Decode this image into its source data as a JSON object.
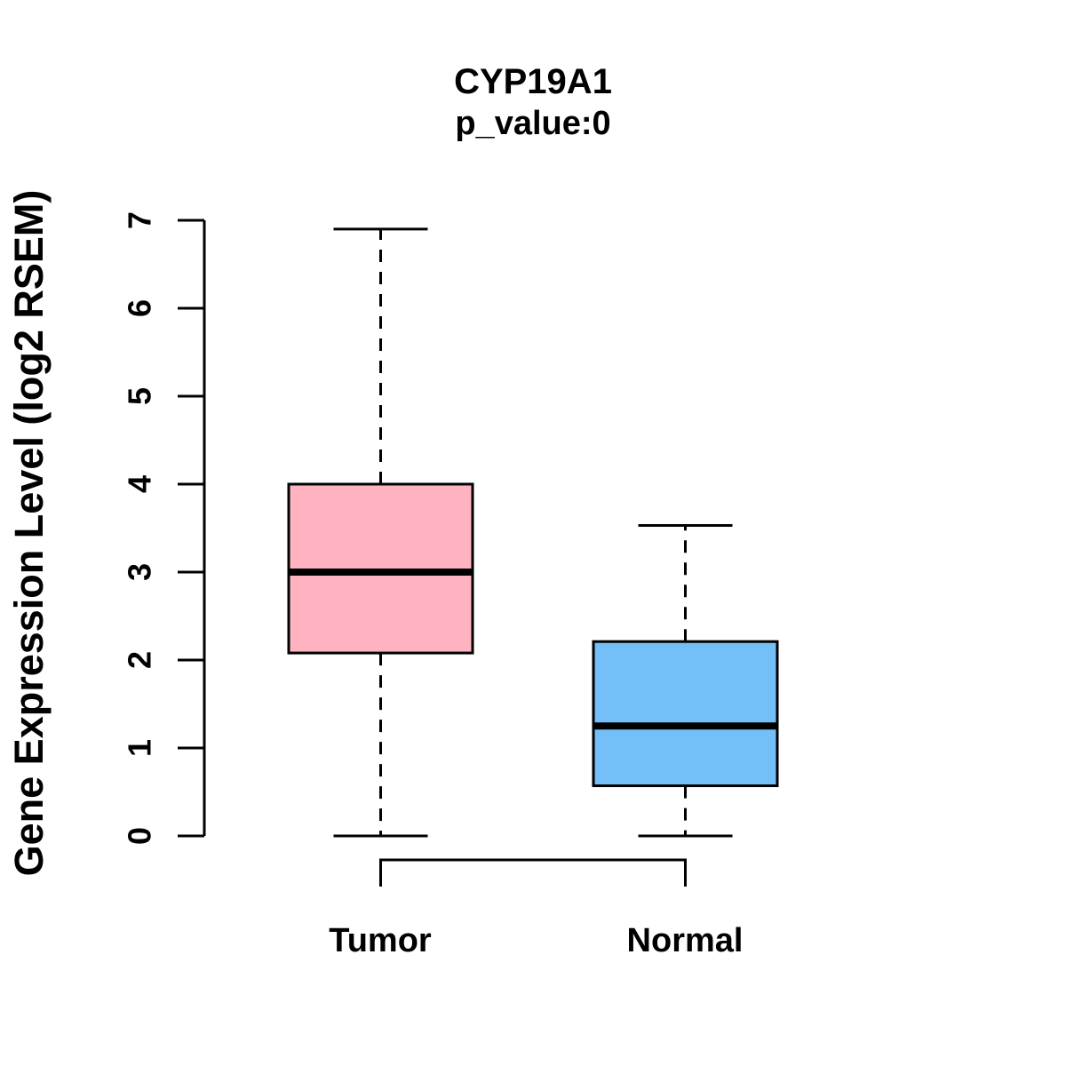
{
  "page": {
    "background": "#ffffff"
  },
  "chart_data": {
    "type": "boxplot",
    "title": "CYP19A1",
    "subtitle": "p_value:0",
    "ylabel": "Gene Expression Level (log2 RSEM)",
    "xlabel": "",
    "categories": [
      "Tumor",
      "Normal"
    ],
    "ylim": [
      0,
      7
    ],
    "yticks": [
      0,
      1,
      2,
      3,
      4,
      5,
      6,
      7
    ],
    "grid": false,
    "legend": "none",
    "stroke_color": "#000000",
    "series": [
      {
        "name": "Tumor",
        "color": "#FFB3C1",
        "whisker_low": 0,
        "q1": 2.08,
        "median": 3.0,
        "q3": 4.0,
        "whisker_high": 6.9
      },
      {
        "name": "Normal",
        "color": "#74BFF8",
        "whisker_low": 0,
        "q1": 0.57,
        "median": 1.25,
        "q3": 2.21,
        "whisker_high": 3.53
      }
    ],
    "comparison_bracket": {
      "from": "Tumor",
      "to": "Normal"
    }
  }
}
